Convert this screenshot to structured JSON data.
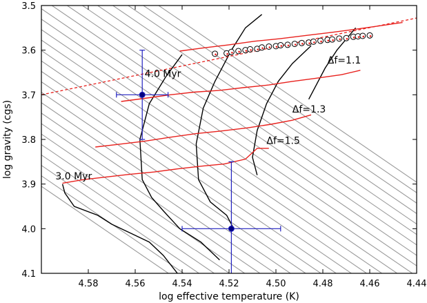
{
  "chart_data": {
    "type": "scatter",
    "xlabel": "log effective temperature (K)",
    "ylabel": "log gravity (cgs)",
    "xlim": [
      4.6,
      4.44
    ],
    "ylim": [
      3.5,
      4.1
    ],
    "x_inverted": true,
    "y_inverted": true,
    "x_ticks": [
      "4.58",
      "4.56",
      "4.54",
      "4.52",
      "4.50",
      "4.48",
      "4.46",
      "4.44"
    ],
    "y_ticks": [
      "3.5",
      "3.6",
      "3.7",
      "3.8",
      "3.9",
      "4.0",
      "4.1"
    ],
    "grid": false,
    "annotations": [
      {
        "text": "4.0 Myr",
        "x": 4.556,
        "y": 3.66
      },
      {
        "text": "3.0 Myr",
        "x": 4.594,
        "y": 3.89
      },
      {
        "text": "Δf=1.1",
        "x": 4.478,
        "y": 3.63
      },
      {
        "text": "Δf=1.3",
        "x": 4.493,
        "y": 3.74
      },
      {
        "text": "Δf=1.5",
        "x": 4.504,
        "y": 3.81
      }
    ],
    "colors": {
      "grid_tracks": "#9a9a9a",
      "isochrones": "#000000",
      "delta_f_lines": "#e8201c",
      "fit_line": "#e8201c",
      "measurements": "#1f1fbf",
      "circles_fill": "#ffffff",
      "circles_edge": "#000000"
    },
    "series": [
      {
        "type": "measurement",
        "values": [
          {
            "x": 4.557,
            "y": 3.7,
            "xerr": 0.011,
            "yerr_lo": 0.1,
            "yerr_hi": 0.1
          },
          {
            "x": 4.519,
            "y": 4.0,
            "xerr": 0.021,
            "yerr_lo": 0.15,
            "yerr_hi": 0.15
          }
        ]
      },
      {
        "type": "isochrone",
        "points": [
          [
            4.591,
            3.9
          ],
          [
            4.59,
            3.92
          ],
          [
            4.586,
            3.95
          ],
          [
            4.576,
            3.97
          ],
          [
            4.57,
            3.99
          ],
          [
            4.562,
            4.01
          ],
          [
            4.554,
            4.03
          ],
          [
            4.548,
            4.06
          ],
          [
            4.542,
            4.1
          ]
        ]
      },
      {
        "type": "isochrone",
        "points": [
          [
            4.54,
            3.61
          ],
          [
            4.547,
            3.66
          ],
          [
            4.554,
            3.72
          ],
          [
            4.558,
            3.8
          ],
          [
            4.557,
            3.89
          ],
          [
            4.553,
            3.93
          ],
          [
            4.548,
            3.96
          ],
          [
            4.541,
            4.0
          ],
          [
            4.532,
            4.03
          ],
          [
            4.524,
            4.07
          ]
        ]
      },
      {
        "type": "isochrone",
        "points": [
          [
            4.506,
            3.52
          ],
          [
            4.513,
            3.55
          ],
          [
            4.519,
            3.6
          ],
          [
            4.526,
            3.67
          ],
          [
            4.531,
            3.73
          ],
          [
            4.534,
            3.81
          ],
          [
            4.533,
            3.89
          ],
          [
            4.528,
            3.94
          ],
          [
            4.521,
            3.97
          ],
          [
            4.518,
            4.0
          ]
        ]
      },
      {
        "type": "isochrone",
        "points": [
          [
            4.485,
            3.59
          ],
          [
            4.493,
            3.63
          ],
          [
            4.499,
            3.67
          ],
          [
            4.504,
            3.72
          ],
          [
            4.508,
            3.78
          ],
          [
            4.51,
            3.84
          ],
          [
            4.508,
            3.88
          ]
        ]
      },
      {
        "type": "isochrone",
        "points": [
          [
            4.466,
            3.55
          ],
          [
            4.474,
            3.6
          ],
          [
            4.479,
            3.64
          ],
          [
            4.483,
            3.68
          ],
          [
            4.486,
            3.71
          ]
        ]
      },
      {
        "type": "delta_f",
        "name": "Δf=1.1",
        "points": [
          [
            4.541,
            3.602
          ],
          [
            4.531,
            3.595
          ],
          [
            4.52,
            3.588
          ],
          [
            4.509,
            3.58
          ],
          [
            4.498,
            3.574
          ],
          [
            4.487,
            3.567
          ],
          [
            4.476,
            3.56
          ],
          [
            4.466,
            3.553
          ],
          [
            4.455,
            3.545
          ],
          [
            4.446,
            3.538
          ]
        ]
      },
      {
        "type": "delta_f",
        "name": "Δf=1.3",
        "points": [
          [
            4.566,
            3.715
          ],
          [
            4.556,
            3.708
          ],
          [
            4.545,
            3.7
          ],
          [
            4.535,
            3.694
          ],
          [
            4.524,
            3.69
          ],
          [
            4.514,
            3.684
          ],
          [
            4.503,
            3.678
          ],
          [
            4.493,
            3.67
          ],
          [
            4.483,
            3.663
          ],
          [
            4.472,
            3.655
          ],
          [
            4.464,
            3.645
          ]
        ]
      },
      {
        "type": "delta_f",
        "name": "Δf=1.5",
        "points": [
          [
            4.577,
            3.817
          ],
          [
            4.567,
            3.811
          ],
          [
            4.556,
            3.804
          ],
          [
            4.545,
            3.795
          ],
          [
            4.534,
            3.787
          ],
          [
            4.523,
            3.781
          ],
          [
            4.512,
            3.774
          ],
          [
            4.502,
            3.766
          ],
          [
            4.493,
            3.757
          ],
          [
            4.485,
            3.745
          ]
        ]
      },
      {
        "type": "delta_f",
        "name": "",
        "points": [
          [
            4.591,
            3.898
          ],
          [
            4.582,
            3.89
          ],
          [
            4.572,
            3.884
          ],
          [
            4.562,
            3.878
          ],
          [
            4.552,
            3.873
          ],
          [
            4.542,
            3.866
          ],
          [
            4.532,
            3.86
          ],
          [
            4.522,
            3.855
          ],
          [
            4.513,
            3.844
          ],
          [
            4.508,
            3.82
          ],
          [
            4.503,
            3.82
          ]
        ]
      },
      {
        "type": "fit_line",
        "points": [
          [
            4.6,
            3.7
          ],
          [
            4.44,
            3.528
          ]
        ]
      },
      {
        "type": "models",
        "values": [
          {
            "x": 4.526,
            "y": 3.608
          },
          {
            "x": 4.521,
            "y": 3.607
          },
          {
            "x": 4.519,
            "y": 3.604
          },
          {
            "x": 4.516,
            "y": 3.602
          },
          {
            "x": 4.513,
            "y": 3.6
          },
          {
            "x": 4.511,
            "y": 3.598
          },
          {
            "x": 4.508,
            "y": 3.597
          },
          {
            "x": 4.506,
            "y": 3.594
          },
          {
            "x": 4.503,
            "y": 3.592
          },
          {
            "x": 4.5,
            "y": 3.591
          },
          {
            "x": 4.498,
            "y": 3.589
          },
          {
            "x": 4.495,
            "y": 3.588
          },
          {
            "x": 4.492,
            "y": 3.586
          },
          {
            "x": 4.489,
            "y": 3.584
          },
          {
            "x": 4.486,
            "y": 3.583
          },
          {
            "x": 4.484,
            "y": 3.581
          },
          {
            "x": 4.481,
            "y": 3.579
          },
          {
            "x": 4.478,
            "y": 3.577
          },
          {
            "x": 4.476,
            "y": 3.576
          },
          {
            "x": 4.473,
            "y": 3.574
          },
          {
            "x": 4.47,
            "y": 3.573
          },
          {
            "x": 4.467,
            "y": 3.57
          },
          {
            "x": 4.465,
            "y": 3.569
          },
          {
            "x": 4.463,
            "y": 3.568
          },
          {
            "x": 4.46,
            "y": 3.567
          }
        ]
      }
    ],
    "background_tracks": {
      "count": 26,
      "x_start_at_top": 4.55,
      "x_step": 0.0065,
      "slope_dlogg_dlogT": -3.6
    }
  }
}
